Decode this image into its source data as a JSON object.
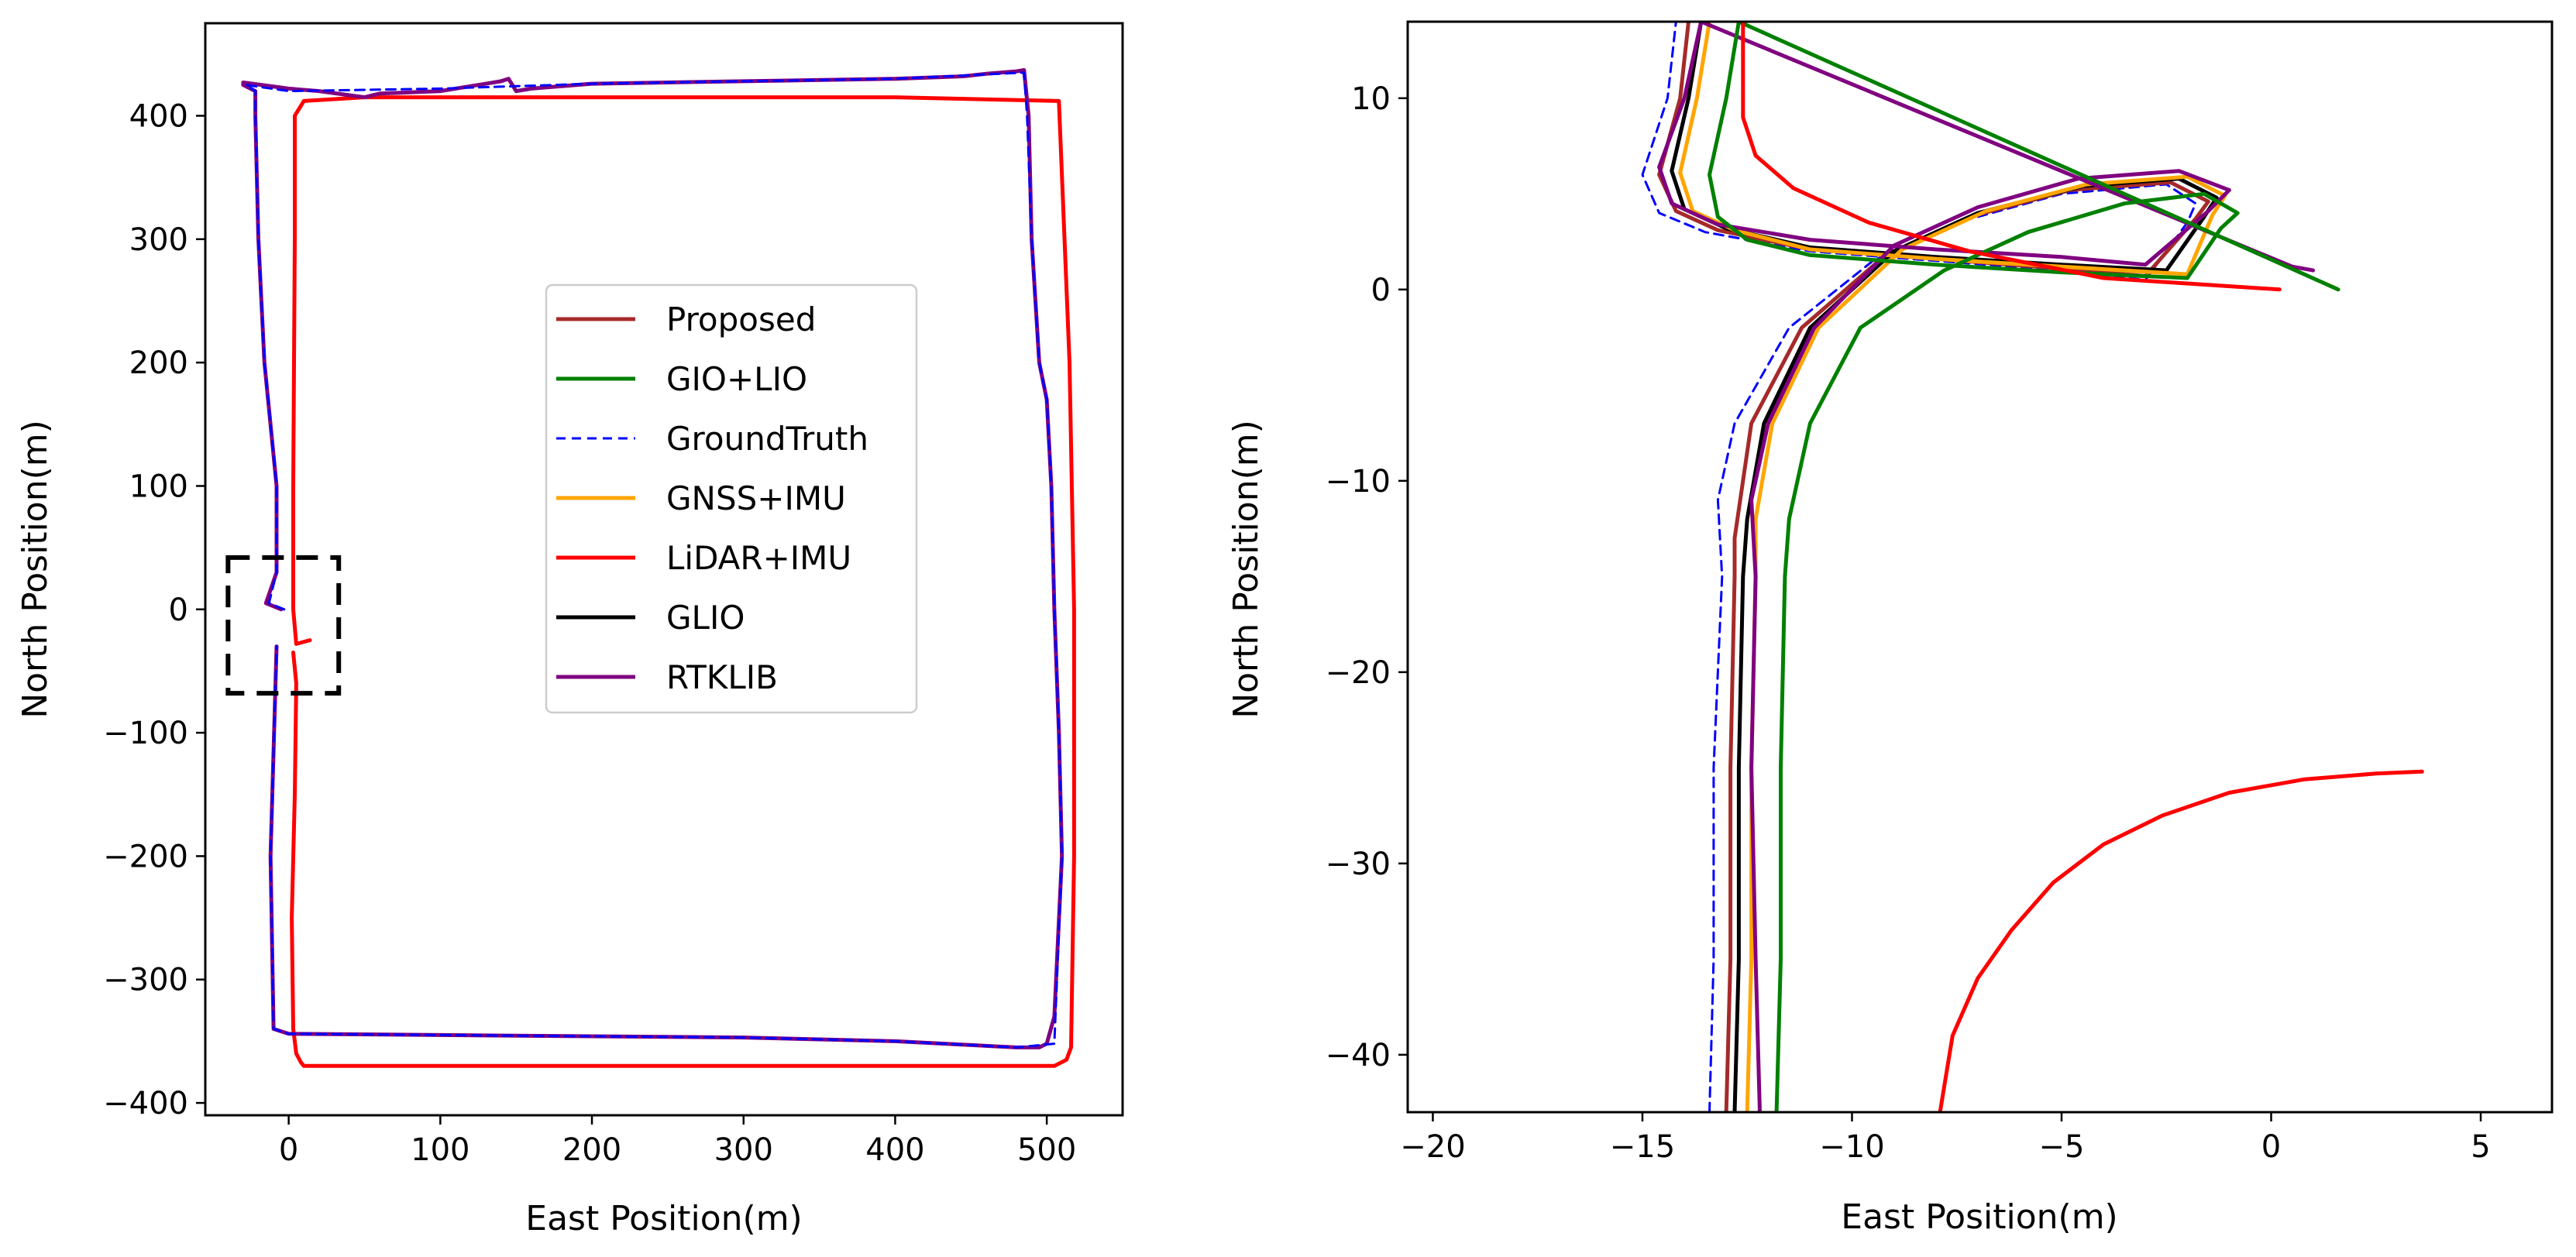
{
  "chart_data": [
    {
      "type": "line",
      "panel": "overview",
      "title": "",
      "xlabel": "East Position(m)",
      "ylabel": "North Position(m)",
      "xlim": [
        -55,
        550
      ],
      "ylim": [
        -410,
        475
      ],
      "grid": false,
      "xticks": [
        0,
        100,
        200,
        300,
        400,
        500
      ],
      "xtick_labels": [
        "0",
        "100",
        "200",
        "300",
        "400",
        "500"
      ],
      "yticks": [
        -400,
        -300,
        -200,
        -100,
        0,
        100,
        200,
        300,
        400
      ],
      "ytick_labels": [
        "−400",
        "−300",
        "−200",
        "−100",
        "0",
        "100",
        "200",
        "300",
        "400"
      ],
      "legend": {
        "location": "center",
        "entries": [
          {
            "label": "Proposed",
            "color": "#a52a2a",
            "style": "solid"
          },
          {
            "label": "GIO+LIO",
            "color": "#008000",
            "style": "solid"
          },
          {
            "label": "GroundTruth",
            "color": "#0000ff",
            "style": "dashed"
          },
          {
            "label": "GNSS+IMU",
            "color": "#ffa500",
            "style": "solid"
          },
          {
            "label": "LiDAR+IMU",
            "color": "#ff0000",
            "style": "solid"
          },
          {
            "label": "GLIO",
            "color": "#000000",
            "style": "solid"
          },
          {
            "label": "RTKLIB",
            "color": "#800080",
            "style": "solid"
          }
        ]
      },
      "series": [
        {
          "name": "LiDAR+IMU",
          "color": "#ff0000",
          "x": [
            3,
            5,
            4,
            2,
            3,
            5,
            8,
            10,
            15,
            100,
            200,
            300,
            400,
            505,
            513,
            516,
            518,
            518,
            515,
            508,
            400,
            300,
            200,
            50,
            10,
            4,
            4,
            3,
            3,
            5,
            14
          ],
          "y": [
            -35,
            -60,
            -150,
            -250,
            -340,
            -360,
            -367,
            -370,
            -370,
            -370,
            -370,
            -370,
            -370,
            -370,
            -365,
            -355,
            -200,
            0,
            200,
            412,
            415,
            415,
            415,
            415,
            412,
            400,
            300,
            100,
            0,
            -28,
            -25
          ]
        },
        {
          "name": "RTKLIB",
          "color": "#800080",
          "x": [
            -5,
            -15,
            -8,
            -8,
            -16,
            -20,
            -22,
            -22,
            -30,
            -30,
            0,
            20,
            50,
            60,
            100,
            140,
            145,
            150,
            160,
            200,
            300,
            400,
            445,
            460,
            480,
            485,
            488,
            490,
            495,
            500,
            503,
            505,
            508,
            510,
            505,
            500,
            495,
            480,
            400,
            300,
            200,
            100,
            0,
            -10,
            -12,
            -8
          ],
          "y": [
            0,
            5,
            30,
            100,
            200,
            300,
            400,
            420,
            425,
            427,
            422,
            420,
            415,
            418,
            420,
            428,
            430,
            420,
            422,
            426,
            428,
            430,
            432,
            434,
            436,
            437,
            400,
            300,
            200,
            170,
            100,
            0,
            -100,
            -200,
            -330,
            -352,
            -355,
            -355,
            -350,
            -347,
            -346,
            -345,
            -344,
            -340,
            -200,
            -30
          ]
        },
        {
          "name": "GroundTruth",
          "color": "#0000ff",
          "style": "dashed",
          "x": [
            -3,
            -13,
            -8,
            -8,
            -16,
            -20,
            -22,
            -22,
            -28,
            0,
            100,
            200,
            300,
            400,
            485,
            487,
            490,
            495,
            500,
            503,
            505,
            508,
            510,
            505,
            480,
            400,
            300,
            200,
            100,
            0,
            -10,
            -12,
            -8
          ],
          "y": [
            0,
            5,
            30,
            100,
            200,
            300,
            400,
            420,
            425,
            420,
            422,
            426,
            428,
            430,
            435,
            400,
            300,
            200,
            170,
            100,
            0,
            -100,
            -200,
            -352,
            -355,
            -350,
            -347,
            -346,
            -345,
            -344,
            -340,
            -200,
            -30
          ]
        }
      ],
      "annotations": [
        {
          "type": "dashed-rectangle",
          "x_range": [
            -40,
            33
          ],
          "y_range": [
            -68,
            42
          ],
          "color": "#000000"
        }
      ]
    },
    {
      "type": "line",
      "panel": "zoom",
      "title": "",
      "xlabel": "East Position(m)",
      "ylabel": "North Position(m)",
      "xlim": [
        -20.6,
        6.7
      ],
      "ylim": [
        -43,
        14
      ],
      "grid": false,
      "xticks": [
        -20,
        -15,
        -10,
        -5,
        0,
        5
      ],
      "xtick_labels": [
        "−20",
        "−15",
        "−10",
        "−5",
        "0",
        "5"
      ],
      "yticks": [
        -40,
        -30,
        -20,
        -10,
        0,
        10
      ],
      "ytick_labels": [
        "−40",
        "−30",
        "−20",
        "−10",
        "0",
        "10"
      ],
      "series": [
        {
          "name": "GroundTruth",
          "color": "#0000ff",
          "style": "dashed",
          "x": [
            -13.4,
            -13.3,
            -13.3,
            -13.1,
            -13.2,
            -12.8,
            -11.5,
            -9.5,
            -7.5,
            -5,
            -2.5,
            -1.8,
            -2,
            -3,
            -5,
            -8,
            -11,
            -13.5,
            -14.6,
            -15.0,
            -14.4,
            -14.2
          ],
          "y": [
            -43,
            -35,
            -25,
            -15,
            -11,
            -7,
            -2,
            1.5,
            3.5,
            5,
            5.5,
            4.5,
            3.5,
            0.5,
            1,
            1.5,
            2,
            3,
            4,
            6,
            10,
            14
          ]
        },
        {
          "name": "Proposed",
          "color": "#a52a2a",
          "x": [
            -13.0,
            -12.9,
            -12.9,
            -12.8,
            -12.8,
            -12.4,
            -11.2,
            -9.2,
            -7.2,
            -4.8,
            -2.4,
            -1.5,
            -1.8,
            -3,
            -5,
            -8,
            -11,
            -13.2,
            -14.2,
            -14.6,
            -14.1,
            -13.9
          ],
          "y": [
            -43,
            -35,
            -25,
            -15,
            -13,
            -7,
            -2,
            1.8,
            3.8,
            5.2,
            5.6,
            4.6,
            3.7,
            0.7,
            1.1,
            1.6,
            2.1,
            3.1,
            4.1,
            6,
            10,
            14
          ]
        },
        {
          "name": "GLIO",
          "color": "#000000",
          "x": [
            -12.8,
            -12.7,
            -12.7,
            -12.6,
            -12.5,
            -12.1,
            -11.0,
            -9.0,
            -7.0,
            -4.5,
            -2.2,
            -1.3,
            -1.6,
            -2.5,
            -5,
            -8,
            -11,
            -13.0,
            -14.0,
            -14.3,
            -13.9,
            -13.6
          ],
          "y": [
            -43,
            -35,
            -25,
            -15,
            -12,
            -7,
            -2,
            2,
            4,
            5.4,
            5.8,
            4.8,
            3.8,
            1,
            1.3,
            1.7,
            2.2,
            3.2,
            4.2,
            6.2,
            10,
            14
          ]
        },
        {
          "name": "GNSS+IMU",
          "color": "#ffa500",
          "x": [
            -12.5,
            -12.4,
            -12.4,
            -12.3,
            -12.3,
            -11.9,
            -10.8,
            -8.8,
            -6.8,
            -4.4,
            -2,
            -1.1,
            -1.4,
            -2,
            -5,
            -8,
            -11,
            -12.8,
            -13.8,
            -14.1,
            -13.7,
            -13.4
          ],
          "y": [
            -43,
            -35,
            -25,
            -15,
            -12,
            -7,
            -2,
            2.1,
            4.1,
            5.5,
            5.9,
            4.9,
            3.9,
            0.8,
            1.2,
            1.6,
            2.1,
            3.1,
            4.1,
            6.1,
            10,
            14
          ]
        },
        {
          "name": "RTKLIB",
          "color": "#800080",
          "x": [
            -12.2,
            -12.3,
            -12.4,
            -12.3,
            -12.4,
            -12.0,
            -10.9,
            -9.0,
            -7.0,
            -4.6,
            -2.2,
            -1.0,
            -1.5,
            -3,
            -5,
            -8,
            -11,
            -13.2,
            -14.3,
            -14.6,
            -14.0,
            -13.6,
            0.5,
            1.0
          ],
          "y": [
            -43,
            -35,
            -25,
            -15,
            -11,
            -7,
            -2,
            2.3,
            4.3,
            5.8,
            6.2,
            5.2,
            4.1,
            1.3,
            1.7,
            2.1,
            2.6,
            3.4,
            4.5,
            6.4,
            10,
            14,
            1.2,
            1.0
          ]
        },
        {
          "name": "GIO+LIO",
          "color": "#008000",
          "x": [
            -11.8,
            -11.7,
            -11.7,
            -11.6,
            -11.5,
            -11.0,
            -9.8,
            -7.8,
            -5.8,
            -3.5,
            -1.6,
            -0.8,
            -1.2,
            -2,
            -5,
            -8,
            -11,
            -12.5,
            -13.2,
            -13.4,
            -13.0,
            -12.7,
            1.6
          ],
          "y": [
            -43,
            -35,
            -25,
            -15,
            -12,
            -7,
            -2,
            1,
            3,
            4.5,
            5,
            4,
            3.2,
            0.6,
            0.9,
            1.3,
            1.8,
            2.6,
            3.8,
            6,
            10,
            14,
            0
          ]
        },
        {
          "name": "LiDAR+IMU",
          "color": "#ff0000",
          "x": [
            -12.6,
            -12.6,
            -12.3,
            -11.4,
            -9.6,
            -7.2,
            -4,
            0.2
          ],
          "y": [
            14,
            9,
            7,
            5.3,
            3.5,
            2,
            0.6,
            0
          ]
        },
        {
          "name": "LiDAR+IMU (lower)",
          "color": "#ff0000",
          "x": [
            -7.9,
            -7.6,
            -7.0,
            -6.2,
            -5.2,
            -4.0,
            -2.6,
            -1.0,
            0.8,
            2.5,
            3.6
          ],
          "y": [
            -43,
            -39,
            -36,
            -33.5,
            -31,
            -29,
            -27.5,
            -26.3,
            -25.6,
            -25.3,
            -25.2
          ]
        }
      ]
    }
  ]
}
